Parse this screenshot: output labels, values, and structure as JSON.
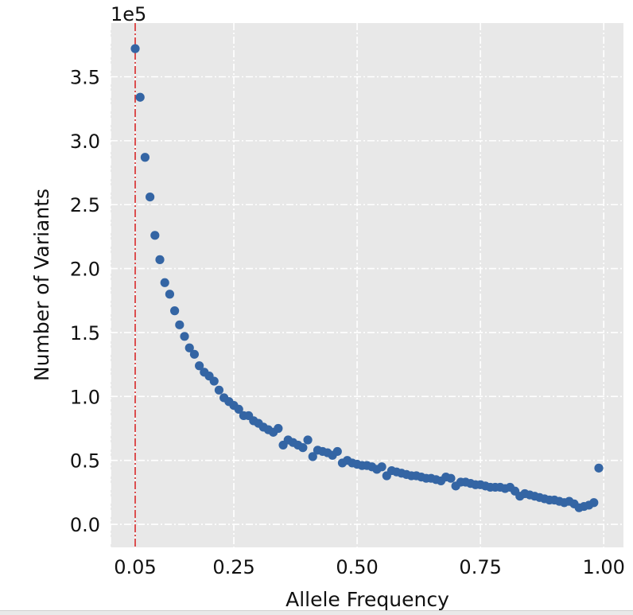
{
  "chart_data": {
    "type": "scatter",
    "title": "",
    "xlabel": "Allele Frequency",
    "ylabel": "Number of Variants",
    "y_offset_label": "1e5",
    "xlim": [
      -0.0,
      1.04
    ],
    "ylim": [
      -0.18,
      3.92
    ],
    "x_ticks": [
      {
        "value": 0.05,
        "label": "0.05",
        "highlight": true
      },
      {
        "value": 0.25,
        "label": "0.25"
      },
      {
        "value": 0.5,
        "label": "0.50"
      },
      {
        "value": 0.75,
        "label": "0.75"
      },
      {
        "value": 1.0,
        "label": "1.00"
      }
    ],
    "extra_x_gridlines": [
      0.0
    ],
    "y_ticks": [
      {
        "value": 0.0,
        "label": "0.0"
      },
      {
        "value": 0.5,
        "label": "0.5"
      },
      {
        "value": 1.0,
        "label": "1.0"
      },
      {
        "value": 1.5,
        "label": "1.5"
      },
      {
        "value": 2.0,
        "label": "2.0"
      },
      {
        "value": 2.5,
        "label": "2.5"
      },
      {
        "value": 3.0,
        "label": "3.0"
      },
      {
        "value": 3.5,
        "label": "3.5"
      }
    ],
    "grid": true,
    "threshold_line": {
      "x": 0.05,
      "color": "#d62728",
      "style": "dash-dot"
    },
    "colors": {
      "points": "#3465a4",
      "background": "#e8e8e8",
      "grid": "#ffffff",
      "highlight_tick": "#e8000b"
    },
    "series": [
      {
        "x": [
          0.05,
          0.06,
          0.07,
          0.08,
          0.09,
          0.1,
          0.11,
          0.12,
          0.13,
          0.14,
          0.15,
          0.16,
          0.17,
          0.18,
          0.19,
          0.2,
          0.21,
          0.22,
          0.23,
          0.24,
          0.25,
          0.26,
          0.27,
          0.28,
          0.29,
          0.3,
          0.31,
          0.32,
          0.33,
          0.34,
          0.35,
          0.36,
          0.37,
          0.38,
          0.39,
          0.4,
          0.41,
          0.42,
          0.43,
          0.44,
          0.45,
          0.46,
          0.47,
          0.48,
          0.49,
          0.5,
          0.51,
          0.52,
          0.53,
          0.54,
          0.55,
          0.56,
          0.57,
          0.58,
          0.59,
          0.6,
          0.61,
          0.62,
          0.63,
          0.64,
          0.65,
          0.66,
          0.67,
          0.68,
          0.69,
          0.7,
          0.71,
          0.72,
          0.73,
          0.74,
          0.75,
          0.76,
          0.77,
          0.78,
          0.79,
          0.8,
          0.81,
          0.82,
          0.83,
          0.84,
          0.85,
          0.86,
          0.87,
          0.88,
          0.89,
          0.9,
          0.91,
          0.92,
          0.93,
          0.94,
          0.95,
          0.96,
          0.97,
          0.98,
          0.99
        ],
        "y": [
          3.72,
          3.34,
          2.87,
          2.56,
          2.26,
          2.07,
          1.89,
          1.8,
          1.67,
          1.56,
          1.47,
          1.38,
          1.33,
          1.24,
          1.19,
          1.16,
          1.12,
          1.05,
          0.99,
          0.96,
          0.93,
          0.9,
          0.85,
          0.85,
          0.81,
          0.79,
          0.76,
          0.74,
          0.72,
          0.75,
          0.62,
          0.66,
          0.64,
          0.62,
          0.6,
          0.66,
          0.53,
          0.58,
          0.57,
          0.56,
          0.54,
          0.57,
          0.48,
          0.5,
          0.48,
          0.47,
          0.46,
          0.46,
          0.45,
          0.43,
          0.45,
          0.38,
          0.42,
          0.41,
          0.4,
          0.39,
          0.38,
          0.38,
          0.37,
          0.36,
          0.36,
          0.35,
          0.34,
          0.37,
          0.36,
          0.3,
          0.33,
          0.33,
          0.32,
          0.31,
          0.31,
          0.3,
          0.29,
          0.29,
          0.29,
          0.28,
          0.29,
          0.26,
          0.22,
          0.24,
          0.23,
          0.22,
          0.21,
          0.2,
          0.19,
          0.19,
          0.18,
          0.17,
          0.18,
          0.16,
          0.13,
          0.14,
          0.15,
          0.17,
          0.44
        ]
      }
    ]
  }
}
